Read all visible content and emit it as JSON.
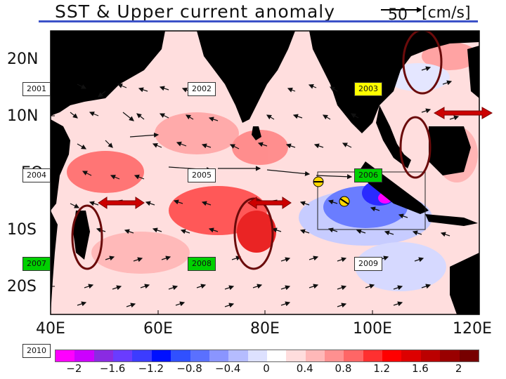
{
  "title": "SST & Upper current anomaly",
  "ref_arrow": {
    "value": "50",
    "unit": "[cm/s]"
  },
  "lat_labels": [
    "20N",
    "10N",
    "EQ",
    "10S",
    "20S"
  ],
  "lon_labels": [
    "40E",
    "60E",
    "80E",
    "100E",
    "120E"
  ],
  "year_boxes": [
    {
      "label": "2001",
      "color": "#ffffff"
    },
    {
      "label": "2002",
      "color": "#ffffff"
    },
    {
      "label": "2003",
      "color": "#ffff00"
    },
    {
      "label": "2004",
      "color": "#ffffff"
    },
    {
      "label": "2005",
      "color": "#ffffff"
    },
    {
      "label": "2006",
      "color": "#00d000"
    },
    {
      "label": "2007",
      "color": "#00d000"
    },
    {
      "label": "2008",
      "color": "#00d000"
    },
    {
      "label": "2009",
      "color": "#ffffff"
    },
    {
      "label": "2010",
      "color": "#ffffff"
    }
  ],
  "colorbar": {
    "colors": [
      "#ff00ff",
      "#cc00ff",
      "#8a2be2",
      "#6a3cff",
      "#3c3cff",
      "#0010ff",
      "#3050ff",
      "#5a70ff",
      "#8a95ff",
      "#b5bcff",
      "#dde1ff",
      "#ffffff",
      "#ffdddd",
      "#ffb8b8",
      "#ff9090",
      "#ff6666",
      "#ff3030",
      "#ff0000",
      "#dd0000",
      "#bb0000",
      "#990000",
      "#770000"
    ],
    "tick_labels": [
      "−2",
      "−1.6",
      "−1.2",
      "−0.8",
      "−0.4",
      "0",
      "0.4",
      "0.8",
      "1.2",
      "1.6",
      "2"
    ]
  },
  "colors": {
    "land": "#000000",
    "ocean_base": "#ffdede",
    "outline": "#6b0b0b",
    "double_arrow": "#cc0000",
    "box_outline": "#222222"
  }
}
